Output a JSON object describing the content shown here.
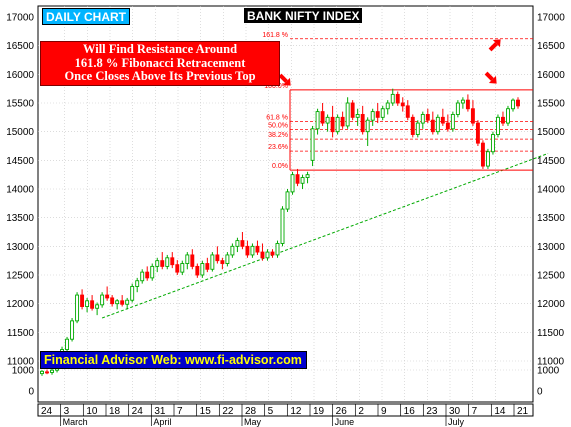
{
  "chart_labels": {
    "timeframe": "DAILY CHART",
    "index_name": "BANK NIFTY INDEX",
    "note_lines": [
      "Will Find Resistance Around",
      "161.8 % Fibonacci Retracement",
      "Once Closes Above Its Previous Top"
    ],
    "website": "Financial Advisor Web: www.fi-advisor.com"
  },
  "colors": {
    "up": "#00aa00",
    "down": "#ff0000",
    "trendline": "#00aa00",
    "fib": "#ff0000",
    "grid": "#c8c8c8",
    "daily_bg": "#00b4ff",
    "note_bg": "#ff0000",
    "web_bg": "#0000cc",
    "web_text": "#ffff00"
  },
  "chart_data": {
    "type": "candlestick",
    "title": "BANK NIFTY INDEX",
    "subtitle": "DAILY CHART",
    "ylim": [
      0,
      17000
    ],
    "yticks": [
      0,
      1000,
      11000,
      11500,
      12000,
      12500,
      13000,
      13500,
      14000,
      14500,
      15000,
      15500,
      16000,
      16500,
      17000
    ],
    "y_axis": "both sides",
    "x_day_labels": [
      "24",
      "3",
      "10",
      "18",
      "24",
      "31",
      "7",
      "15",
      "22",
      "28",
      "5",
      "12",
      "19",
      "26",
      "2",
      "9",
      "16",
      "23",
      "30",
      "7",
      "14",
      "21"
    ],
    "x_month_labels": [
      {
        "text": "March",
        "at": "3"
      },
      {
        "text": "April",
        "at": "31"
      },
      {
        "text": "May",
        "at": "28"
      },
      {
        "text": "June",
        "at": "2"
      },
      {
        "text": "July",
        "at": "30"
      }
    ],
    "fibonacci": [
      {
        "label": "161.8 %",
        "value": 16620
      },
      {
        "label": "100.0%",
        "value": 15730
      },
      {
        "label": "61.8 %",
        "value": 15180
      },
      {
        "label": "50.0%",
        "value": 15040
      },
      {
        "label": "38.2%",
        "value": 14870
      },
      {
        "label": "23.6%",
        "value": 14660
      },
      {
        "label": "0.0%",
        "value": 14330
      }
    ],
    "annotation": "Will Find Resistance Around 161.8 % Fibonacci Retracement Once Closes Above Its Previous Top",
    "trendline": {
      "from": {
        "day_index": 12,
        "value": 11750
      },
      "to": {
        "day_index": 101,
        "value": 14620
      }
    },
    "candles": [
      {
        "o": 10780,
        "h": 10840,
        "l": 10740,
        "c": 10820
      },
      {
        "o": 10810,
        "h": 10850,
        "l": 10770,
        "c": 10800
      },
      {
        "o": 10800,
        "h": 10860,
        "l": 10760,
        "c": 10840
      },
      {
        "o": 10840,
        "h": 10920,
        "l": 10800,
        "c": 10890
      },
      {
        "o": 10900,
        "h": 11250,
        "l": 10880,
        "c": 11200
      },
      {
        "o": 11200,
        "h": 11420,
        "l": 11150,
        "c": 11380
      },
      {
        "o": 11380,
        "h": 11750,
        "l": 11340,
        "c": 11700
      },
      {
        "o": 11700,
        "h": 12200,
        "l": 11660,
        "c": 12150
      },
      {
        "o": 12150,
        "h": 12250,
        "l": 11900,
        "c": 11950
      },
      {
        "o": 11950,
        "h": 12100,
        "l": 11850,
        "c": 12050
      },
      {
        "o": 12050,
        "h": 12150,
        "l": 11880,
        "c": 11920
      },
      {
        "o": 11920,
        "h": 12020,
        "l": 11800,
        "c": 11980
      },
      {
        "o": 11980,
        "h": 12200,
        "l": 11930,
        "c": 12150
      },
      {
        "o": 12150,
        "h": 12300,
        "l": 12050,
        "c": 12100
      },
      {
        "o": 12100,
        "h": 12150,
        "l": 11950,
        "c": 12000
      },
      {
        "o": 12000,
        "h": 12080,
        "l": 11900,
        "c": 12050
      },
      {
        "o": 12050,
        "h": 12150,
        "l": 11950,
        "c": 11990
      },
      {
        "o": 11990,
        "h": 12100,
        "l": 11900,
        "c": 12060
      },
      {
        "o": 12060,
        "h": 12350,
        "l": 12020,
        "c": 12300
      },
      {
        "o": 12300,
        "h": 12450,
        "l": 12200,
        "c": 12400
      },
      {
        "o": 12400,
        "h": 12600,
        "l": 12350,
        "c": 12550
      },
      {
        "o": 12550,
        "h": 12650,
        "l": 12400,
        "c": 12450
      },
      {
        "o": 12450,
        "h": 12700,
        "l": 12400,
        "c": 12650
      },
      {
        "o": 12650,
        "h": 12800,
        "l": 12550,
        "c": 12750
      },
      {
        "o": 12750,
        "h": 12900,
        "l": 12600,
        "c": 12650
      },
      {
        "o": 12650,
        "h": 12850,
        "l": 12600,
        "c": 12800
      },
      {
        "o": 12800,
        "h": 12900,
        "l": 12620,
        "c": 12680
      },
      {
        "o": 12680,
        "h": 12760,
        "l": 12500,
        "c": 12550
      },
      {
        "o": 12550,
        "h": 12750,
        "l": 12500,
        "c": 12700
      },
      {
        "o": 12700,
        "h": 12900,
        "l": 12600,
        "c": 12850
      },
      {
        "o": 12850,
        "h": 12950,
        "l": 12600,
        "c": 12650
      },
      {
        "o": 12650,
        "h": 12700,
        "l": 12450,
        "c": 12500
      },
      {
        "o": 12500,
        "h": 12750,
        "l": 12450,
        "c": 12700
      },
      {
        "o": 12700,
        "h": 12800,
        "l": 12550,
        "c": 12600
      },
      {
        "o": 12600,
        "h": 12900,
        "l": 12560,
        "c": 12850
      },
      {
        "o": 12850,
        "h": 13000,
        "l": 12700,
        "c": 12750
      },
      {
        "o": 12750,
        "h": 12800,
        "l": 12600,
        "c": 12700
      },
      {
        "o": 12700,
        "h": 12900,
        "l": 12650,
        "c": 12850
      },
      {
        "o": 12850,
        "h": 13050,
        "l": 12800,
        "c": 13000
      },
      {
        "o": 13000,
        "h": 13150,
        "l": 12900,
        "c": 13100
      },
      {
        "o": 13100,
        "h": 13250,
        "l": 12950,
        "c": 13000
      },
      {
        "o": 13000,
        "h": 13100,
        "l": 12800,
        "c": 12850
      },
      {
        "o": 12850,
        "h": 13050,
        "l": 12800,
        "c": 13000
      },
      {
        "o": 13000,
        "h": 13100,
        "l": 12850,
        "c": 12900
      },
      {
        "o": 12900,
        "h": 13050,
        "l": 12750,
        "c": 12800
      },
      {
        "o": 12800,
        "h": 12950,
        "l": 12750,
        "c": 12900
      },
      {
        "o": 12900,
        "h": 12950,
        "l": 12800,
        "c": 12850
      },
      {
        "o": 12850,
        "h": 13100,
        "l": 12800,
        "c": 13050
      },
      {
        "o": 13050,
        "h": 13700,
        "l": 13000,
        "c": 13650
      },
      {
        "o": 13650,
        "h": 14000,
        "l": 13600,
        "c": 13950
      },
      {
        "o": 13950,
        "h": 14300,
        "l": 13900,
        "c": 14250
      },
      {
        "o": 14250,
        "h": 14350,
        "l": 14050,
        "c": 14100
      },
      {
        "o": 14100,
        "h": 14250,
        "l": 14000,
        "c": 14200
      },
      {
        "o": 14200,
        "h": 14300,
        "l": 14100,
        "c": 14250
      },
      {
        "o": 14500,
        "h": 15100,
        "l": 14400,
        "c": 15050
      },
      {
        "o": 15050,
        "h": 15400,
        "l": 14950,
        "c": 15350
      },
      {
        "o": 15350,
        "h": 15500,
        "l": 15100,
        "c": 15150
      },
      {
        "o": 15150,
        "h": 15300,
        "l": 15000,
        "c": 15250
      },
      {
        "o": 15250,
        "h": 15450,
        "l": 14900,
        "c": 15000
      },
      {
        "o": 15000,
        "h": 15300,
        "l": 14950,
        "c": 15250
      },
      {
        "o": 15250,
        "h": 15350,
        "l": 15050,
        "c": 15100
      },
      {
        "o": 15100,
        "h": 15600,
        "l": 15050,
        "c": 15500
      },
      {
        "o": 15500,
        "h": 15550,
        "l": 15200,
        "c": 15250
      },
      {
        "o": 15250,
        "h": 15400,
        "l": 15100,
        "c": 15300
      },
      {
        "o": 15300,
        "h": 15450,
        "l": 14950,
        "c": 15000
      },
      {
        "o": 15000,
        "h": 15250,
        "l": 14750,
        "c": 15200
      },
      {
        "o": 15200,
        "h": 15400,
        "l": 15100,
        "c": 15350
      },
      {
        "o": 15350,
        "h": 15500,
        "l": 15150,
        "c": 15250
      },
      {
        "o": 15250,
        "h": 15450,
        "l": 15200,
        "c": 15400
      },
      {
        "o": 15400,
        "h": 15550,
        "l": 15300,
        "c": 15500
      },
      {
        "o": 15500,
        "h": 15750,
        "l": 15450,
        "c": 15650
      },
      {
        "o": 15650,
        "h": 15700,
        "l": 15450,
        "c": 15500
      },
      {
        "o": 15500,
        "h": 15600,
        "l": 15350,
        "c": 15450
      },
      {
        "o": 15450,
        "h": 15550,
        "l": 15200,
        "c": 15250
      },
      {
        "o": 15250,
        "h": 15300,
        "l": 14900,
        "c": 14950
      },
      {
        "o": 14950,
        "h": 15200,
        "l": 14900,
        "c": 15150
      },
      {
        "o": 15150,
        "h": 15350,
        "l": 15050,
        "c": 15300
      },
      {
        "o": 15300,
        "h": 15400,
        "l": 15150,
        "c": 15200
      },
      {
        "o": 15200,
        "h": 15350,
        "l": 14950,
        "c": 15000
      },
      {
        "o": 15000,
        "h": 15300,
        "l": 14950,
        "c": 15250
      },
      {
        "o": 15250,
        "h": 15400,
        "l": 15100,
        "c": 15150
      },
      {
        "o": 15150,
        "h": 15300,
        "l": 15000,
        "c": 15050
      },
      {
        "o": 15050,
        "h": 15350,
        "l": 15000,
        "c": 15300
      },
      {
        "o": 15300,
        "h": 15550,
        "l": 15250,
        "c": 15500
      },
      {
        "o": 15500,
        "h": 15600,
        "l": 15400,
        "c": 15550
      },
      {
        "o": 15550,
        "h": 15650,
        "l": 15350,
        "c": 15400
      },
      {
        "o": 15400,
        "h": 15550,
        "l": 15100,
        "c": 15150
      },
      {
        "o": 15150,
        "h": 15200,
        "l": 14750,
        "c": 14800
      },
      {
        "o": 14800,
        "h": 14850,
        "l": 14350,
        "c": 14400
      },
      {
        "o": 14400,
        "h": 14700,
        "l": 14350,
        "c": 14650
      },
      {
        "o": 14650,
        "h": 15000,
        "l": 14600,
        "c": 14950
      },
      {
        "o": 14950,
        "h": 15300,
        "l": 14900,
        "c": 15250
      },
      {
        "o": 15250,
        "h": 15350,
        "l": 15100,
        "c": 15150
      },
      {
        "o": 15150,
        "h": 15450,
        "l": 15100,
        "c": 15400
      },
      {
        "o": 15400,
        "h": 15580,
        "l": 15350,
        "c": 15550
      },
      {
        "o": 15550,
        "h": 15600,
        "l": 15400,
        "c": 15450
      }
    ]
  }
}
